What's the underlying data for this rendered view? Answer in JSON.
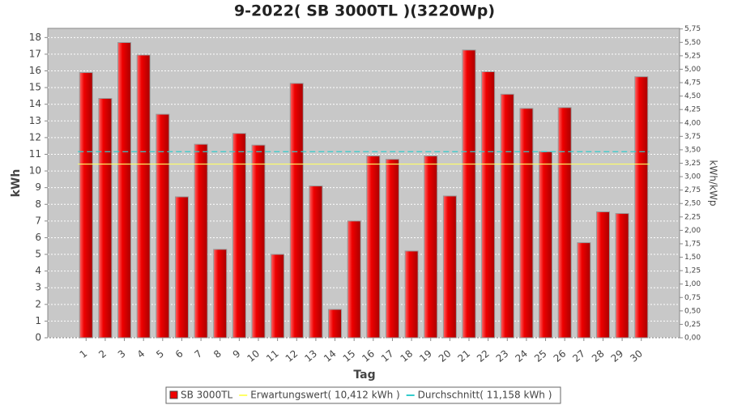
{
  "chart_data": {
    "type": "bar",
    "title": "9-2022( SB 3000TL )(3220Wp)",
    "x_label": "Tag",
    "y_label": "kWh",
    "y2_label": "kWh/kWp",
    "categories": [
      "1",
      "2",
      "3",
      "4",
      "5",
      "6",
      "7",
      "8",
      "9",
      "10",
      "11",
      "12",
      "13",
      "14",
      "15",
      "16",
      "17",
      "18",
      "19",
      "20",
      "21",
      "22",
      "23",
      "24",
      "25",
      "26",
      "27",
      "28",
      "29",
      "30"
    ],
    "series": [
      {
        "name": "SB 3000TL",
        "color": "#ee0000",
        "values": [
          15.9,
          14.35,
          17.7,
          16.95,
          13.4,
          8.45,
          11.6,
          5.3,
          12.25,
          11.55,
          5.0,
          15.25,
          9.1,
          1.7,
          7.0,
          10.9,
          10.7,
          5.2,
          10.9,
          8.5,
          17.25,
          15.95,
          14.6,
          13.75,
          11.15,
          13.8,
          5.7,
          7.55,
          7.45,
          15.65
        ]
      }
    ],
    "reference_lines": [
      {
        "name": "Erwartungswert( 10,412 kWh )",
        "value": 10.412,
        "color": "#ffff66"
      },
      {
        "name": "Durchschnitt( 11,158 kWh )",
        "value": 11.158,
        "color": "#33cccc"
      }
    ],
    "ylim": [
      0,
      18.55
    ],
    "yticks": [
      0,
      1,
      2,
      3,
      4,
      5,
      6,
      7,
      8,
      9,
      10,
      11,
      12,
      13,
      14,
      15,
      16,
      17,
      18
    ],
    "y2lim": [
      0,
      5.761
    ],
    "y2ticks": [
      {
        "value": 0,
        "label": "0,00"
      },
      {
        "value": 0.25,
        "label": "0,25"
      },
      {
        "value": 0.5,
        "label": "0,50"
      },
      {
        "value": 0.75,
        "label": "0,75"
      },
      {
        "value": 1,
        "label": "1,00"
      },
      {
        "value": 1.25,
        "label": "1,25"
      },
      {
        "value": 1.5,
        "label": "1,50"
      },
      {
        "value": 1.75,
        "label": "1,75"
      },
      {
        "value": 2,
        "label": "2,00"
      },
      {
        "value": 2.25,
        "label": "2,25"
      },
      {
        "value": 2.5,
        "label": "2,50"
      },
      {
        "value": 2.75,
        "label": "2,75"
      },
      {
        "value": 3,
        "label": "3,00"
      },
      {
        "value": 3.25,
        "label": "3,25"
      },
      {
        "value": 3.5,
        "label": "3,50"
      },
      {
        "value": 3.75,
        "label": "3,75"
      },
      {
        "value": 4,
        "label": "4,00"
      },
      {
        "value": 4.25,
        "label": "4,25"
      },
      {
        "value": 4.5,
        "label": "4,50"
      },
      {
        "value": 4.75,
        "label": "4,75"
      },
      {
        "value": 5,
        "label": "5,00"
      },
      {
        "value": 5.25,
        "label": "5,25"
      },
      {
        "value": 5.5,
        "label": "5,50"
      },
      {
        "value": 5.75,
        "label": "5,75"
      }
    ],
    "grid": true
  }
}
